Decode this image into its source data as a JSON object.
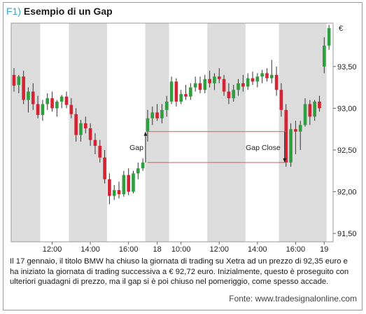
{
  "figure": {
    "label": "F1)",
    "title": "Esempio di un Gap",
    "caption": "Il 17 gennaio, il titolo BMW ha chiuso la giornata di trading su Xetra ad un prezzo di 92,35 euro e ha iniziato la giornata di trading successiva a € 92,72 euro. Inizialmente, questo è proseguito con ulteriori guadagni di prezzo, ma il gap si è poi chiuso nel pomeriggio, come spesso accade.",
    "source": "Fonte: www.tradesignalonline.com"
  },
  "colors": {
    "up": "#2e9e3e",
    "down": "#d42332",
    "shade": "#dcdcdc",
    "gap_line": "#e2574c",
    "fig_label": "#3aa3c8"
  },
  "chart_data": {
    "type": "candlestick",
    "currency": "€",
    "y_ticks": [
      {
        "value": 93.5,
        "label": "93,50"
      },
      {
        "value": 93.0,
        "label": "93,00"
      },
      {
        "value": 92.5,
        "label": "92,50"
      },
      {
        "value": 92.0,
        "label": "92,00"
      },
      {
        "value": 91.5,
        "label": "91,50"
      }
    ],
    "x_ticks": [
      {
        "index": 8,
        "label": "12:00"
      },
      {
        "index": 16,
        "label": "14:00"
      },
      {
        "index": 24,
        "label": "16:00"
      },
      {
        "index": 30,
        "label": "18"
      },
      {
        "index": 35,
        "label": "10:00"
      },
      {
        "index": 43,
        "label": "12:00"
      },
      {
        "index": 51,
        "label": "14:00"
      },
      {
        "index": 59,
        "label": "16:00"
      },
      {
        "index": 65,
        "label": "19"
      }
    ],
    "shaded_bands": [
      [
        0,
        5
      ],
      [
        12,
        19
      ],
      [
        28,
        32
      ],
      [
        41,
        48
      ],
      [
        56,
        65
      ]
    ],
    "candles": [
      {
        "o": 93.4,
        "h": 93.48,
        "l": 93.2,
        "c": 93.27
      },
      {
        "o": 93.28,
        "h": 93.4,
        "l": 93.18,
        "c": 93.38
      },
      {
        "o": 93.38,
        "h": 93.45,
        "l": 93.05,
        "c": 93.1
      },
      {
        "o": 93.1,
        "h": 93.25,
        "l": 92.95,
        "c": 93.2
      },
      {
        "o": 93.2,
        "h": 93.3,
        "l": 92.98,
        "c": 93.05
      },
      {
        "o": 93.05,
        "h": 93.15,
        "l": 92.88,
        "c": 92.92
      },
      {
        "o": 92.92,
        "h": 93.1,
        "l": 92.85,
        "c": 93.05
      },
      {
        "o": 93.05,
        "h": 93.18,
        "l": 92.98,
        "c": 93.12
      },
      {
        "o": 93.12,
        "h": 93.2,
        "l": 92.96,
        "c": 93.0
      },
      {
        "o": 93.0,
        "h": 93.1,
        "l": 92.9,
        "c": 93.08
      },
      {
        "o": 93.08,
        "h": 93.16,
        "l": 93.0,
        "c": 93.14
      },
      {
        "o": 93.14,
        "h": 93.2,
        "l": 93.0,
        "c": 93.04
      },
      {
        "o": 93.04,
        "h": 93.12,
        "l": 92.88,
        "c": 92.93
      },
      {
        "o": 92.93,
        "h": 93.0,
        "l": 92.6,
        "c": 92.68
      },
      {
        "o": 92.68,
        "h": 92.86,
        "l": 92.6,
        "c": 92.82
      },
      {
        "o": 92.82,
        "h": 92.9,
        "l": 92.7,
        "c": 92.76
      },
      {
        "o": 92.76,
        "h": 92.82,
        "l": 92.55,
        "c": 92.62
      },
      {
        "o": 92.62,
        "h": 92.7,
        "l": 92.45,
        "c": 92.55
      },
      {
        "o": 92.55,
        "h": 92.62,
        "l": 92.35,
        "c": 92.41
      },
      {
        "o": 92.41,
        "h": 92.5,
        "l": 92.1,
        "c": 92.15
      },
      {
        "o": 92.15,
        "h": 92.22,
        "l": 91.85,
        "c": 91.95
      },
      {
        "o": 91.95,
        "h": 92.08,
        "l": 91.9,
        "c": 92.02
      },
      {
        "o": 92.02,
        "h": 92.12,
        "l": 91.92,
        "c": 91.97
      },
      {
        "o": 91.97,
        "h": 92.25,
        "l": 91.94,
        "c": 92.2
      },
      {
        "o": 92.2,
        "h": 92.28,
        "l": 91.96,
        "c": 92.0
      },
      {
        "o": 92.0,
        "h": 92.25,
        "l": 91.98,
        "c": 92.22
      },
      {
        "o": 92.22,
        "h": 92.35,
        "l": 92.15,
        "c": 92.28
      },
      {
        "o": 92.28,
        "h": 92.4,
        "l": 92.25,
        "c": 92.35
      },
      {
        "o": 92.72,
        "h": 92.98,
        "l": 92.6,
        "c": 92.88
      },
      {
        "o": 92.88,
        "h": 93.02,
        "l": 92.8,
        "c": 92.95
      },
      {
        "o": 92.95,
        "h": 93.05,
        "l": 92.85,
        "c": 92.88
      },
      {
        "o": 92.88,
        "h": 93.05,
        "l": 92.82,
        "c": 92.98
      },
      {
        "o": 92.98,
        "h": 93.15,
        "l": 92.9,
        "c": 93.08
      },
      {
        "o": 93.08,
        "h": 93.38,
        "l": 93.05,
        "c": 93.32
      },
      {
        "o": 93.32,
        "h": 93.36,
        "l": 93.02,
        "c": 93.08
      },
      {
        "o": 93.08,
        "h": 93.22,
        "l": 93.05,
        "c": 93.17
      },
      {
        "o": 93.17,
        "h": 93.28,
        "l": 93.1,
        "c": 93.14
      },
      {
        "o": 93.14,
        "h": 93.3,
        "l": 93.1,
        "c": 93.25
      },
      {
        "o": 93.25,
        "h": 93.38,
        "l": 93.2,
        "c": 93.3
      },
      {
        "o": 93.3,
        "h": 93.38,
        "l": 93.18,
        "c": 93.22
      },
      {
        "o": 93.22,
        "h": 93.4,
        "l": 93.18,
        "c": 93.35
      },
      {
        "o": 93.35,
        "h": 93.45,
        "l": 93.25,
        "c": 93.3
      },
      {
        "o": 93.3,
        "h": 93.42,
        "l": 93.22,
        "c": 93.38
      },
      {
        "o": 93.38,
        "h": 93.48,
        "l": 93.3,
        "c": 93.35
      },
      {
        "o": 93.35,
        "h": 93.4,
        "l": 93.15,
        "c": 93.2
      },
      {
        "o": 93.2,
        "h": 93.3,
        "l": 93.05,
        "c": 93.12
      },
      {
        "o": 93.12,
        "h": 93.28,
        "l": 93.08,
        "c": 93.22
      },
      {
        "o": 93.22,
        "h": 93.35,
        "l": 93.15,
        "c": 93.3
      },
      {
        "o": 93.3,
        "h": 93.4,
        "l": 93.2,
        "c": 93.26
      },
      {
        "o": 93.26,
        "h": 93.42,
        "l": 93.22,
        "c": 93.36
      },
      {
        "o": 93.36,
        "h": 93.44,
        "l": 93.28,
        "c": 93.32
      },
      {
        "o": 93.32,
        "h": 93.42,
        "l": 93.25,
        "c": 93.38
      },
      {
        "o": 93.38,
        "h": 93.46,
        "l": 93.3,
        "c": 93.42
      },
      {
        "o": 93.42,
        "h": 93.48,
        "l": 93.32,
        "c": 93.36
      },
      {
        "o": 93.36,
        "h": 93.58,
        "l": 93.3,
        "c": 93.4
      },
      {
        "o": 93.4,
        "h": 93.5,
        "l": 93.15,
        "c": 93.22
      },
      {
        "o": 93.22,
        "h": 93.3,
        "l": 92.9,
        "c": 92.98
      },
      {
        "o": 92.98,
        "h": 93.05,
        "l": 92.3,
        "c": 92.35
      },
      {
        "o": 92.35,
        "h": 92.82,
        "l": 92.3,
        "c": 92.75
      },
      {
        "o": 92.75,
        "h": 92.85,
        "l": 92.45,
        "c": 92.72
      },
      {
        "o": 92.72,
        "h": 92.85,
        "l": 92.5,
        "c": 92.8
      },
      {
        "o": 92.8,
        "h": 93.12,
        "l": 92.78,
        "c": 93.05
      },
      {
        "o": 93.05,
        "h": 93.1,
        "l": 92.8,
        "c": 92.9
      },
      {
        "o": 92.9,
        "h": 93.1,
        "l": 92.85,
        "c": 93.08
      },
      {
        "o": 93.08,
        "h": 93.15,
        "l": 92.96,
        "c": 93.0
      },
      {
        "o": 93.5,
        "h": 93.85,
        "l": 93.42,
        "c": 93.75
      },
      {
        "o": 93.75,
        "h": 94.0,
        "l": 93.7,
        "c": 93.96
      }
    ],
    "gap": {
      "upper": 92.72,
      "lower": 92.35,
      "open_label": "Gap",
      "close_label": "Gap Close"
    }
  }
}
